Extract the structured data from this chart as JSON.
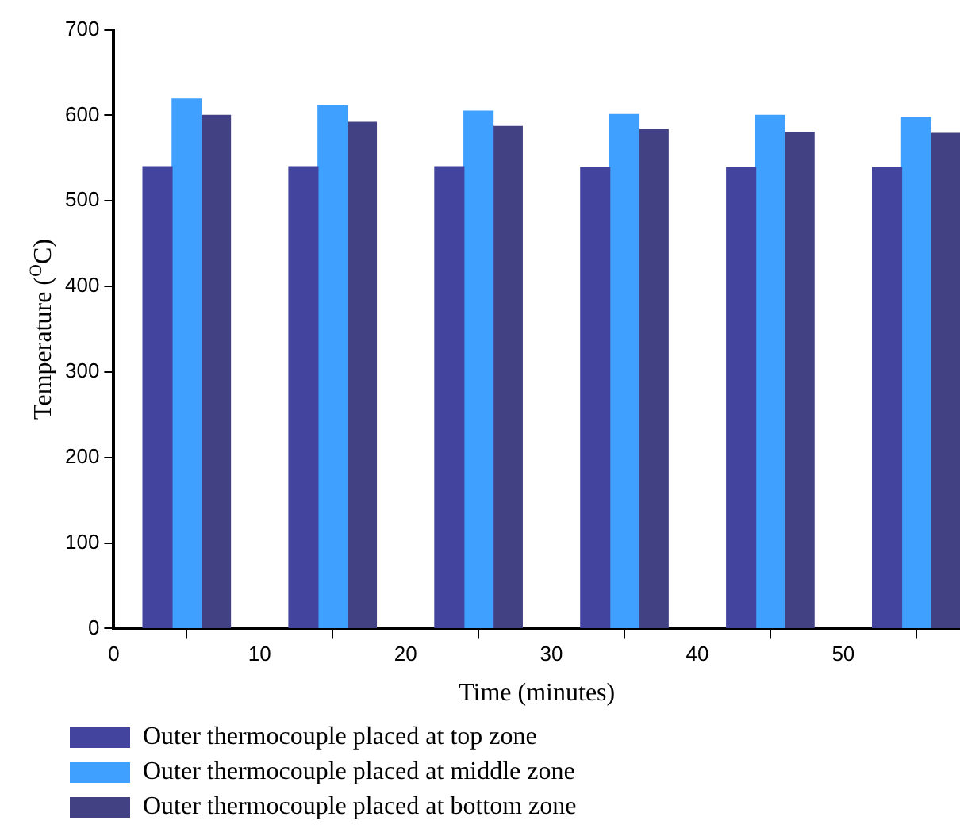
{
  "chart_data": {
    "type": "bar",
    "xlabel": "Time (minutes)",
    "ylabel": "Temperature ($^{O}$C)",
    "xlim": [
      0,
      58
    ],
    "xticks": [
      0,
      10,
      20,
      30,
      40,
      50
    ],
    "ylim": [
      0,
      700
    ],
    "yticks": [
      0,
      100,
      200,
      300,
      400,
      500,
      600,
      700
    ],
    "grid": false,
    "legend": "bottom",
    "series": [
      {
        "name": "Outer thermocouple placed at top zone",
        "color": "#43449e",
        "x": [
          3,
          13,
          23,
          33,
          43,
          53
        ],
        "values": [
          540,
          540,
          540,
          539,
          539,
          539
        ]
      },
      {
        "name": "Outer thermocouple placed at middle zone",
        "color": "#40a0ff",
        "x": [
          5,
          15,
          25,
          35,
          45,
          55
        ],
        "values": [
          619,
          611,
          605,
          601,
          600,
          597
        ]
      },
      {
        "name": "Outer thermocouple placed at bottom zone",
        "color": "#414183",
        "x": [
          7,
          17,
          27,
          37,
          47,
          57
        ],
        "values": [
          600,
          592,
          587,
          583,
          580,
          579
        ]
      }
    ]
  }
}
